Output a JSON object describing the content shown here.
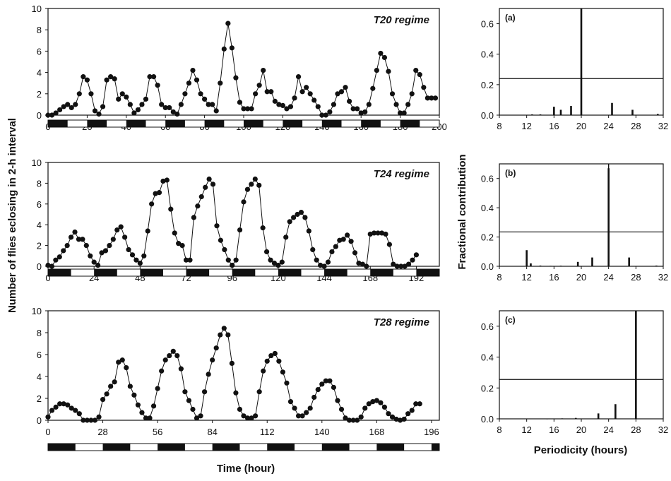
{
  "left_ylabel": "Number of flies eclosing in 2-h interval",
  "left_xlabel": "Time (hour)",
  "right_ylabel": "Fractional contribution",
  "right_xlabel": "Periodicity (hours)",
  "colors": {
    "ink": "#111111",
    "light": "#ffffff",
    "dark": "#111111"
  },
  "chart_data": [
    {
      "type": "line",
      "panel": "T20",
      "title": "T20 regime",
      "xlim": [
        0,
        200
      ],
      "ylim": [
        0,
        10
      ],
      "xticks": [
        "0",
        "20",
        "40",
        "60",
        "80",
        "100",
        "120",
        "140",
        "160",
        "180",
        "200"
      ],
      "yticks": [
        "0",
        "2",
        "4",
        "6",
        "8",
        "10"
      ],
      "x_step": 2,
      "y": [
        0,
        0,
        0.2,
        0.5,
        0.8,
        1,
        0.7,
        1,
        2,
        3.6,
        3.3,
        2,
        0.4,
        0.1,
        0.8,
        3.3,
        3.6,
        3.4,
        1.5,
        2,
        1.7,
        1,
        0.2,
        0.5,
        1,
        1.5,
        3.6,
        3.6,
        2.8,
        1,
        0.7,
        0.7,
        0.3,
        0.1,
        1,
        2,
        3,
        4.2,
        3.3,
        2,
        1.5,
        1,
        1,
        0.4,
        3,
        6.2,
        8.6,
        6.3,
        3.5,
        1.2,
        0.6,
        0.6,
        0.6,
        2,
        2.8,
        4.2,
        2.2,
        2.2,
        1.3,
        1,
        0.9,
        0.6,
        0.8,
        1.6,
        3.6,
        2.2,
        2.6,
        2,
        1.4,
        0.8,
        0,
        0,
        0.3,
        1,
        2,
        2.2,
        2.6,
        1.3,
        0.6,
        0.6,
        0.2,
        0.3,
        1,
        2.5,
        4.2,
        5.8,
        5.4,
        4.1,
        2,
        1,
        0.2,
        0.2,
        1,
        2,
        4.2,
        3.8,
        2.6,
        1.6,
        1.6,
        1.6
      ],
      "bands": {
        "period": 20,
        "start": "dark"
      }
    },
    {
      "type": "line",
      "panel": "T24",
      "title": "T24 regime",
      "xlim": [
        0,
        204
      ],
      "ylim": [
        0,
        10
      ],
      "xticks": [
        "0",
        "24",
        "48",
        "72",
        "96",
        "120",
        "144",
        "168",
        "192"
      ],
      "yticks": [
        "0",
        "2",
        "4",
        "6",
        "8",
        "10"
      ],
      "x_step": 2,
      "y": [
        0.1,
        0,
        0.6,
        0.9,
        1.5,
        2,
        2.8,
        3.3,
        2.6,
        2.6,
        2,
        1,
        0.4,
        0.1,
        1.3,
        1.5,
        2,
        2.6,
        3.5,
        3.8,
        2.8,
        1.6,
        1.1,
        0.6,
        0.3,
        1,
        3.4,
        6,
        7,
        7.1,
        8.2,
        8.3,
        5.5,
        3.2,
        2.2,
        2,
        0.6,
        0.6,
        4.7,
        5.8,
        6.7,
        7.6,
        8.4,
        7.9,
        3.9,
        2.5,
        1.6,
        0.6,
        0.1,
        0.6,
        3.5,
        6.2,
        7.4,
        7.9,
        8.4,
        7.8,
        3.7,
        1.4,
        0.6,
        0.3,
        0.1,
        0.4,
        2.8,
        4.3,
        4.7,
        5,
        5.2,
        4.7,
        3.4,
        1.6,
        0.6,
        0.1,
        0,
        0.4,
        1.4,
        1.9,
        2.5,
        2.6,
        3,
        2.4,
        1.3,
        0.3,
        0.2,
        0,
        3.1,
        3.2,
        3.2,
        3.2,
        3.1,
        2.1,
        0.2,
        0,
        0,
        0,
        0.2,
        0.6,
        1.1
      ],
      "bands": {
        "period": 24,
        "start": "dark"
      }
    },
    {
      "type": "line",
      "panel": "T28",
      "title": "T28 regime",
      "xlim": [
        0,
        200
      ],
      "ylim": [
        0,
        10
      ],
      "xticks": [
        "0",
        "28",
        "56",
        "84",
        "112",
        "140",
        "168",
        "196"
      ],
      "yticks": [
        "0",
        "2",
        "4",
        "6",
        "8",
        "10"
      ],
      "x_step": 2,
      "y": [
        0.3,
        0.9,
        1.2,
        1.5,
        1.5,
        1.4,
        1.1,
        0.9,
        0.6,
        0,
        0,
        0,
        0,
        0.3,
        1.9,
        2.4,
        3.1,
        3.5,
        5.3,
        5.5,
        4.8,
        3.1,
        2.3,
        1.4,
        0.7,
        0.2,
        0.2,
        1.3,
        2.9,
        4.5,
        5.5,
        5.9,
        6.3,
        5.9,
        4.7,
        2.6,
        1.8,
        1,
        0.2,
        0.4,
        2.6,
        4.2,
        5.5,
        6.6,
        7.8,
        8.4,
        7.8,
        5.2,
        2.5,
        1,
        0.4,
        0.2,
        0.2,
        0.4,
        2.6,
        4.5,
        5.4,
        5.9,
        6.1,
        5.4,
        4.4,
        3.4,
        1.7,
        1.1,
        0.4,
        0.4,
        0.7,
        1.1,
        2.1,
        2.8,
        3.3,
        3.6,
        3.6,
        3,
        1.8,
        1,
        0.2,
        0,
        0,
        0,
        0.3,
        1.1,
        1.5,
        1.7,
        1.8,
        1.6,
        1.2,
        0.6,
        0.3,
        0.1,
        0,
        0.1,
        0.6,
        0.9,
        1.5,
        1.5
      ],
      "bands": {
        "period": 28,
        "start": "dark"
      }
    },
    {
      "type": "bar",
      "panel": "(a)",
      "label": "(a)",
      "xlim": [
        8,
        32
      ],
      "ylim": [
        0,
        0.7
      ],
      "xticks": [
        "8",
        "12",
        "16",
        "20",
        "24",
        "28",
        "32"
      ],
      "yticks": [
        "0.0",
        "0.2",
        "0.4",
        "0.6"
      ],
      "x": [
        12.8,
        14,
        16,
        17,
        18.5,
        20,
        24.5,
        27.5,
        31.2
      ],
      "values": [
        0.005,
        0.005,
        0.055,
        0.035,
        0.06,
        0.7,
        0.08,
        0.035,
        0.008
      ],
      "vline": 20,
      "hline": 0.24
    },
    {
      "type": "bar",
      "panel": "(b)",
      "label": "(b)",
      "xlim": [
        8,
        32
      ],
      "ylim": [
        0,
        0.7
      ],
      "xticks": [
        "8",
        "12",
        "16",
        "20",
        "24",
        "28",
        "32"
      ],
      "yticks": [
        "0.0",
        "0.2",
        "0.4",
        "0.6"
      ],
      "x": [
        12,
        12.6,
        14,
        15.5,
        17,
        19.5,
        21.6,
        24,
        27,
        31
      ],
      "values": [
        0.11,
        0.02,
        0.005,
        0.003,
        0.004,
        0.03,
        0.06,
        0.67,
        0.06,
        0.005
      ],
      "vline": 24,
      "hline": 0.235
    },
    {
      "type": "bar",
      "panel": "(c)",
      "label": "(c)",
      "xlim": [
        8,
        32
      ],
      "ylim": [
        0,
        0.7
      ],
      "xticks": [
        "8",
        "12",
        "16",
        "20",
        "24",
        "28",
        "32"
      ],
      "yticks": [
        "0.0",
        "0.2",
        "0.4",
        "0.6"
      ],
      "x": [
        15,
        17.2,
        19.2,
        22.5,
        25,
        28
      ],
      "values": [
        0.002,
        0.003,
        0.006,
        0.035,
        0.095,
        0.7
      ],
      "vline": 28,
      "hline": 0.255
    }
  ]
}
